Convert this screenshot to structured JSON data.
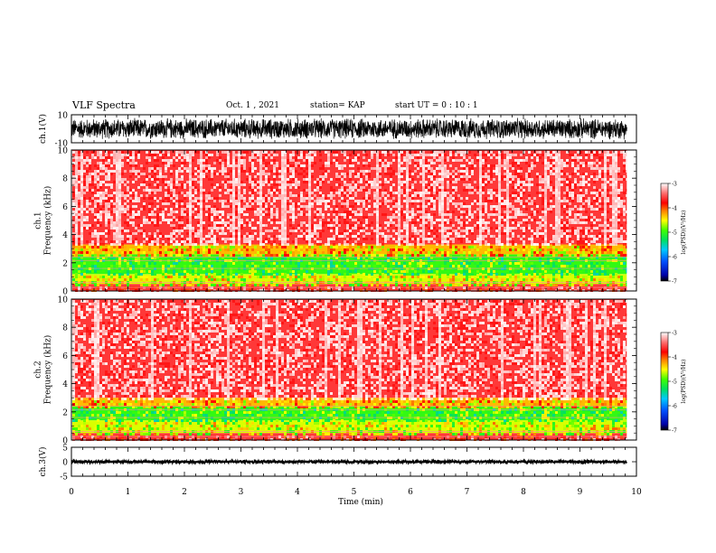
{
  "header": {
    "title": "VLF Spectra",
    "date": "Oct. 1 , 2021",
    "station": "station= KAP",
    "start": "start  UT =   0  : 10 : 1"
  },
  "chart_data": [
    {
      "type": "line",
      "name": "waveform-ch1",
      "ylabel": "ch.1(V)",
      "ylim": [
        -10,
        10
      ],
      "yticks": [
        "10",
        "-10"
      ],
      "xlim": [
        0,
        10
      ],
      "trace": "dense noise, amplitude roughly -7 to +8 V, ends at ~9.83 min",
      "color": "#000000"
    },
    {
      "type": "heatmap",
      "name": "spectrogram-ch1",
      "ylabel": "ch.1\nFrequency  (kHz)",
      "ylim": [
        0,
        10
      ],
      "yticks": [
        "0",
        "2",
        "4",
        "6",
        "8",
        "10"
      ],
      "xlim": [
        0,
        10
      ],
      "data_end_min": 9.83,
      "bands": [
        {
          "from_khz": 0,
          "to_khz": 0.5,
          "level": -3.6
        },
        {
          "from_khz": 0.5,
          "to_khz": 1.2,
          "level": -4.6
        },
        {
          "from_khz": 1.2,
          "to_khz": 2.6,
          "level": -5.0
        },
        {
          "from_khz": 2.6,
          "to_khz": 3.3,
          "level": -4.3
        },
        {
          "from_khz": 3.3,
          "to_khz": 10,
          "level": -3.6
        }
      ],
      "colorbar": {
        "label": "log(PSD)(V²/Hz)",
        "ticks": [
          "-3",
          "-4",
          "-5",
          "-6",
          "-7"
        ],
        "range": [
          -7,
          -3
        ]
      }
    },
    {
      "type": "heatmap",
      "name": "spectrogram-ch2",
      "ylabel": "ch.2\nFrequency  (kHz)",
      "ylim": [
        0,
        10
      ],
      "yticks": [
        "0",
        "2",
        "4",
        "6",
        "8",
        "10"
      ],
      "xlim": [
        0,
        10
      ],
      "data_end_min": 9.83,
      "bands": [
        {
          "from_khz": 0,
          "to_khz": 0.5,
          "level": -3.6
        },
        {
          "from_khz": 0.5,
          "to_khz": 1.4,
          "level": -4.6
        },
        {
          "from_khz": 1.4,
          "to_khz": 2.4,
          "level": -5.0
        },
        {
          "from_khz": 2.4,
          "to_khz": 3.0,
          "level": -4.3
        },
        {
          "from_khz": 3.0,
          "to_khz": 10,
          "level": -3.6
        }
      ],
      "colorbar": {
        "label": "log(PSD)(V²/Hz)",
        "ticks": [
          "-3",
          "-4",
          "-5",
          "-6",
          "-7"
        ],
        "range": [
          -7,
          -3
        ]
      }
    },
    {
      "type": "line",
      "name": "waveform-ch3",
      "ylabel": "ch.3(V)",
      "ylim": [
        -5,
        5
      ],
      "yticks": [
        "5",
        "0",
        "-5"
      ],
      "xlim": [
        0,
        10
      ],
      "trace": "dense thin band around 0 V (about -0.4 to +0.4 V), ends at ~9.83 min",
      "color": "#000000"
    }
  ],
  "xaxis": {
    "label": "Time  (min)",
    "ticks": [
      "0",
      "1",
      "2",
      "3",
      "4",
      "5",
      "6",
      "7",
      "8",
      "9",
      "10"
    ],
    "range": [
      0,
      10
    ]
  }
}
